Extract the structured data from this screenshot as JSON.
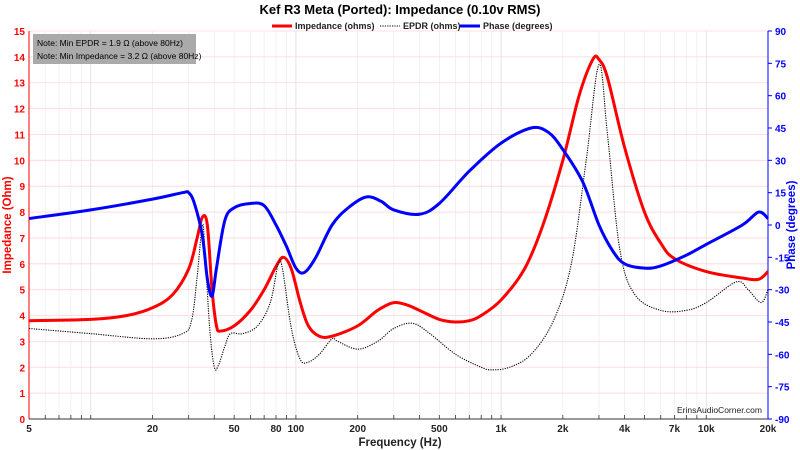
{
  "chart_data": {
    "type": "line",
    "title": "Kef R3 Meta (Ported): Impedance (0.10v RMS)",
    "xlabel": "Frequency (Hz)",
    "ylabel": "Impedance (Ohm)",
    "y2label": "Phase (degrees)",
    "xscale": "log",
    "xlim": [
      5,
      20000
    ],
    "ylim": [
      0,
      15
    ],
    "y2lim": [
      -90,
      90
    ],
    "grid": true,
    "legend": "top-center",
    "xticks": [
      5,
      20,
      50,
      80,
      100,
      200,
      500,
      1000,
      2000,
      4000,
      7000,
      10000,
      20000
    ],
    "xtick_labels": [
      "5",
      "20",
      "50",
      "80",
      "100",
      "200",
      "500",
      "1k",
      "2k",
      "4k",
      "7k",
      "10k",
      "20k"
    ],
    "yticks": [
      0,
      1,
      2,
      3,
      4,
      5,
      6,
      7,
      8,
      9,
      10,
      11,
      12,
      13,
      14,
      15
    ],
    "y2ticks": [
      90,
      75,
      60,
      45,
      30,
      15,
      0,
      -15,
      -30,
      -45,
      -60,
      -75,
      -90
    ],
    "notes": [
      "Note: Min EPDR = 1.9 Ω (above 80Hz)",
      "Note: Min Impedance = 3.2 Ω (above 80Hz)"
    ],
    "watermark": "ErinsAudioCorner.com",
    "series": [
      {
        "name": "Impedance (ohms)",
        "axis": "left",
        "color": "#ff0000",
        "style": "solid",
        "x": [
          5,
          10,
          15,
          20,
          25,
          30,
          33,
          35,
          37,
          39,
          41,
          43,
          50,
          60,
          70,
          80,
          87,
          95,
          105,
          115,
          130,
          150,
          200,
          250,
          300,
          350,
          400,
          500,
          600,
          700,
          800,
          1000,
          1300,
          1600,
          2000,
          2400,
          2800,
          3000,
          3300,
          4000,
          5000,
          6000,
          7000,
          10000,
          15000,
          18000,
          20000
        ],
        "y": [
          3.8,
          3.85,
          4.0,
          4.3,
          4.8,
          5.8,
          7.0,
          7.8,
          7.5,
          5.0,
          3.6,
          3.4,
          3.6,
          4.2,
          5.0,
          5.9,
          6.25,
          5.8,
          4.5,
          3.6,
          3.2,
          3.2,
          3.6,
          4.2,
          4.5,
          4.4,
          4.2,
          3.85,
          3.75,
          3.8,
          4.0,
          4.6,
          5.8,
          7.5,
          10.0,
          12.5,
          13.9,
          13.9,
          13.2,
          10.5,
          8.0,
          6.8,
          6.2,
          5.7,
          5.45,
          5.4,
          5.7
        ]
      },
      {
        "name": "EPDR (ohms)",
        "axis": "left",
        "color": "#000000",
        "style": "dotted",
        "x": [
          5,
          10,
          20,
          28,
          31,
          33,
          35,
          36,
          38,
          40,
          42,
          45,
          48,
          55,
          65,
          75,
          82,
          86,
          95,
          105,
          115,
          130,
          150,
          160,
          200,
          250,
          300,
          370,
          450,
          600,
          800,
          900,
          1100,
          1400,
          1800,
          2200,
          2600,
          3000,
          3300,
          3800,
          4500,
          6000,
          8000,
          10000,
          14000,
          16000,
          18500,
          20000
        ],
        "y": [
          3.5,
          3.3,
          3.1,
          3.3,
          3.8,
          5.5,
          7.5,
          6.5,
          3.5,
          2.0,
          2.1,
          2.8,
          3.3,
          3.3,
          3.6,
          4.5,
          6.0,
          5.8,
          3.5,
          2.3,
          2.2,
          2.5,
          3.1,
          3.0,
          2.7,
          3.0,
          3.5,
          3.7,
          3.3,
          2.5,
          2.0,
          1.9,
          2.0,
          2.5,
          3.8,
          6.0,
          10.0,
          13.7,
          11.0,
          6.5,
          4.8,
          4.2,
          4.2,
          4.5,
          5.3,
          5.0,
          4.5,
          5.0
        ]
      },
      {
        "name": "Phase (degrees)",
        "axis": "right",
        "color": "#0000ff",
        "style": "solid",
        "x": [
          5,
          10,
          20,
          28,
          30,
          32,
          35,
          37,
          39,
          41,
          45,
          50,
          60,
          70,
          80,
          90,
          100,
          110,
          125,
          150,
          180,
          220,
          260,
          300,
          400,
          500,
          700,
          1000,
          1400,
          1700,
          2000,
          2500,
          3000,
          3500,
          4000,
          5000,
          6000,
          8000,
          10000,
          15000,
          18000,
          20000
        ],
        "y": [
          3,
          7,
          12,
          15,
          15,
          10,
          -5,
          -25,
          -33,
          -20,
          2,
          8,
          10,
          9,
          0,
          -10,
          -20,
          -22,
          -15,
          0,
          8,
          13,
          11,
          7,
          5,
          10,
          25,
          38,
          45,
          43,
          35,
          20,
          0,
          -12,
          -18,
          -20,
          -19,
          -14,
          -9,
          0,
          6,
          3
        ]
      }
    ]
  }
}
